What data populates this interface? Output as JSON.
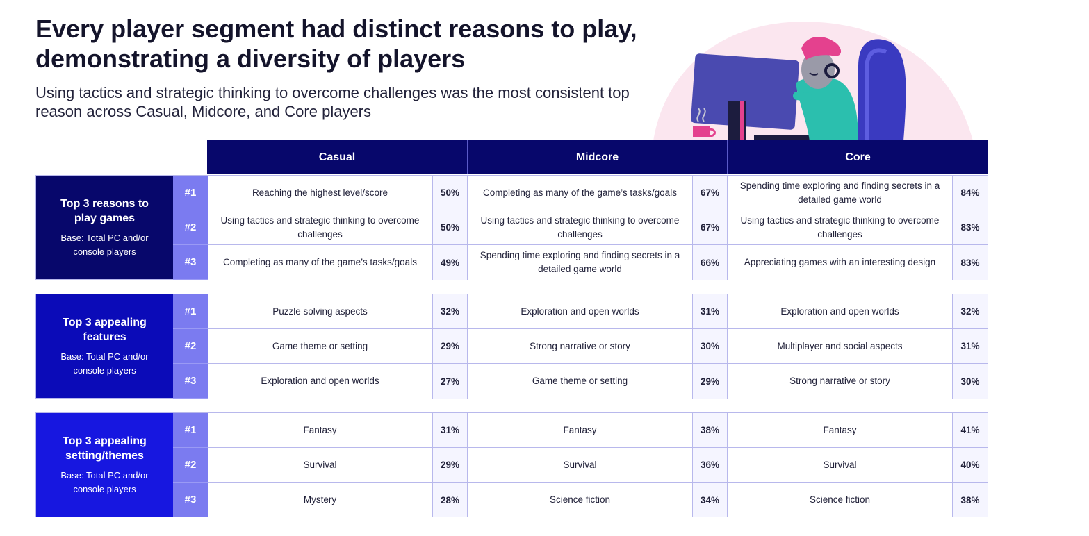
{
  "title": "Every player segment had distinct reasons to play, demonstrating a diversity of players",
  "subtitle": "Using tactics and strategic thinking to overcome challenges was the most consistent top reason across Casual, Midcore, and Core players",
  "columns": [
    "Casual",
    "Midcore",
    "Core"
  ],
  "blocks": [
    {
      "label": "Top 3 reasons to play games",
      "base": "Base: Total PC and/or console players",
      "color": "#07076b",
      "rows": [
        {
          "rank": "#1",
          "cells": [
            {
              "text": "Reaching the highest level/score",
              "pct": "50%"
            },
            {
              "text": "Completing as many of the game’s tasks/goals",
              "pct": "67%"
            },
            {
              "text": "Spending time exploring and finding secrets in a detailed game world",
              "pct": "84%"
            }
          ]
        },
        {
          "rank": "#2",
          "cells": [
            {
              "text": "Using tactics and strategic thinking to overcome challenges",
              "pct": "50%"
            },
            {
              "text": "Using tactics and strategic thinking to overcome challenges",
              "pct": "67%"
            },
            {
              "text": "Using tactics and strategic thinking to overcome challenges",
              "pct": "83%"
            }
          ]
        },
        {
          "rank": "#3",
          "cells": [
            {
              "text": "Completing as many of the game’s tasks/goals",
              "pct": "49%"
            },
            {
              "text": "Spending time exploring and finding secrets in a detailed game world",
              "pct": "66%"
            },
            {
              "text": "Appreciating games with an interesting design",
              "pct": "83%"
            }
          ]
        }
      ]
    },
    {
      "label": "Top 3 appealing features",
      "base": "Base: Total PC and/or console players",
      "color": "#0b0bb8",
      "rows": [
        {
          "rank": "#1",
          "cells": [
            {
              "text": "Puzzle solving aspects",
              "pct": "32%"
            },
            {
              "text": "Exploration and open worlds",
              "pct": "31%"
            },
            {
              "text": "Exploration and open worlds",
              "pct": "32%"
            }
          ]
        },
        {
          "rank": "#2",
          "cells": [
            {
              "text": "Game theme or setting",
              "pct": "29%"
            },
            {
              "text": "Strong narrative or story",
              "pct": "30%"
            },
            {
              "text": "Multiplayer and social aspects",
              "pct": "31%"
            }
          ]
        },
        {
          "rank": "#3",
          "cells": [
            {
              "text": "Exploration and open worlds",
              "pct": "27%"
            },
            {
              "text": "Game theme or setting",
              "pct": "29%"
            },
            {
              "text": "Strong narrative or story",
              "pct": "30%"
            }
          ]
        }
      ]
    },
    {
      "label": "Top 3 appealing setting/themes",
      "base": "Base: Total PC and/or console players",
      "color": "#1717e0",
      "rows": [
        {
          "rank": "#1",
          "cells": [
            {
              "text": "Fantasy",
              "pct": "31%"
            },
            {
              "text": "Fantasy",
              "pct": "38%"
            },
            {
              "text": "Fantasy",
              "pct": "41%"
            }
          ]
        },
        {
          "rank": "#2",
          "cells": [
            {
              "text": "Survival",
              "pct": "29%"
            },
            {
              "text": "Survival",
              "pct": "36%"
            },
            {
              "text": "Survival",
              "pct": "40%"
            }
          ]
        },
        {
          "rank": "#3",
          "cells": [
            {
              "text": "Mystery",
              "pct": "28%"
            },
            {
              "text": "Science fiction",
              "pct": "34%"
            },
            {
              "text": "Science fiction",
              "pct": "38%"
            }
          ]
        }
      ]
    }
  ]
}
